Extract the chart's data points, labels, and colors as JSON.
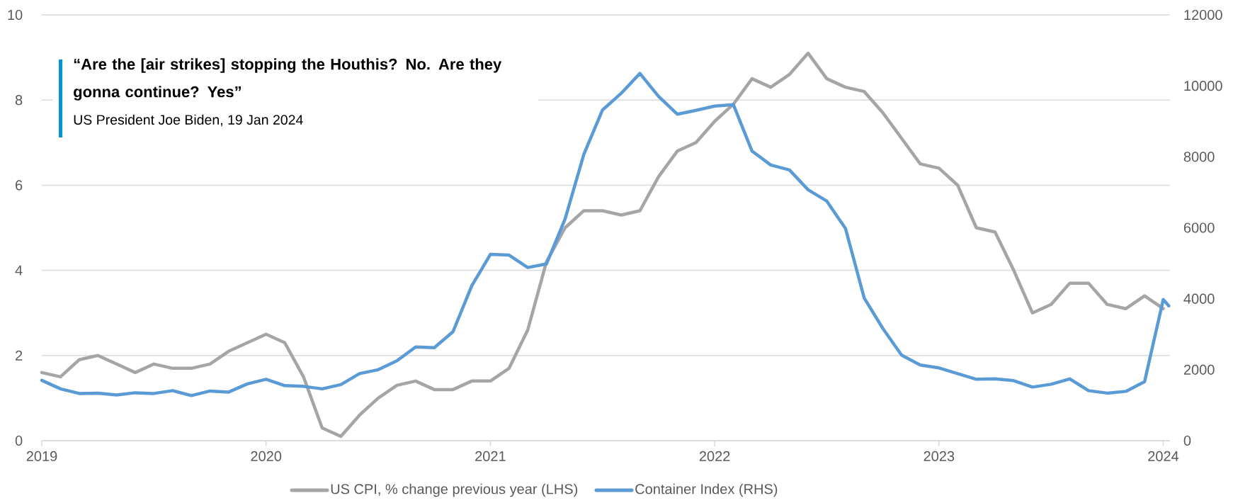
{
  "chart_data": {
    "type": "line",
    "x": [
      "2019-01",
      "2019-02",
      "2019-03",
      "2019-04",
      "2019-05",
      "2019-06",
      "2019-07",
      "2019-08",
      "2019-09",
      "2019-10",
      "2019-11",
      "2019-12",
      "2020-01",
      "2020-02",
      "2020-03",
      "2020-04",
      "2020-05",
      "2020-06",
      "2020-07",
      "2020-08",
      "2020-09",
      "2020-10",
      "2020-11",
      "2020-12",
      "2021-01",
      "2021-02",
      "2021-03",
      "2021-04",
      "2021-05",
      "2021-06",
      "2021-07",
      "2021-08",
      "2021-09",
      "2021-10",
      "2021-11",
      "2021-12",
      "2022-01",
      "2022-02",
      "2022-03",
      "2022-04",
      "2022-05",
      "2022-06",
      "2022-07",
      "2022-08",
      "2022-09",
      "2022-10",
      "2022-11",
      "2022-12",
      "2023-01",
      "2023-02",
      "2023-03",
      "2023-04",
      "2023-05",
      "2023-06",
      "2023-07",
      "2023-08",
      "2023-09",
      "2023-10",
      "2023-11",
      "2023-12",
      "2024-01"
    ],
    "series": [
      {
        "name": "US CPI, % change previous year (LHS)",
        "color": "#a5a5a5",
        "values": [
          1.6,
          1.5,
          1.9,
          2.0,
          1.8,
          1.6,
          1.8,
          1.7,
          1.7,
          1.8,
          2.1,
          2.3,
          2.5,
          2.3,
          1.5,
          0.3,
          0.1,
          0.6,
          1.0,
          1.3,
          1.4,
          1.2,
          1.2,
          1.4,
          1.4,
          1.7,
          2.6,
          4.2,
          5.0,
          5.4,
          5.4,
          5.3,
          5.4,
          6.2,
          6.8,
          7.0,
          7.5,
          7.9,
          8.5,
          8.3,
          8.6,
          9.1,
          8.5,
          8.3,
          8.2,
          7.7,
          7.1,
          6.5,
          6.4,
          6.0,
          5.0,
          4.9,
          4.0,
          3.0,
          3.2,
          3.7,
          3.7,
          3.2,
          3.1,
          3.4,
          3.1
        ]
      },
      {
        "name": "Container Index (RHS)",
        "color": "#5b9bd5",
        "axis": "y2",
        "x": [
          "2019-01",
          "2019-02",
          "2019-03",
          "2019-04",
          "2019-05",
          "2019-06",
          "2019-07",
          "2019-08",
          "2019-09",
          "2019-10",
          "2019-11",
          "2019-12",
          "2020-01",
          "2020-02",
          "2020-03",
          "2020-04",
          "2020-05",
          "2020-06",
          "2020-07",
          "2020-08",
          "2020-09",
          "2020-10",
          "2020-11",
          "2020-12",
          "2021-01",
          "2021-02",
          "2021-03",
          "2021-04",
          "2021-05",
          "2021-06",
          "2021-07",
          "2021-08",
          "2021-09",
          "2021-10",
          "2021-11",
          "2021-12",
          "2022-01",
          "2022-02",
          "2022-03",
          "2022-04",
          "2022-05",
          "2022-06",
          "2022-07",
          "2022-08",
          "2022-09",
          "2022-10",
          "2022-11",
          "2022-12",
          "2023-01",
          "2023-02",
          "2023-03",
          "2023-04",
          "2023-05",
          "2023-06",
          "2023-07",
          "2023-08",
          "2023-09",
          "2023-10",
          "2023-11",
          "2023-12",
          "2024-01",
          "2024-01-10"
        ],
        "values": [
          1700,
          1460,
          1330,
          1340,
          1290,
          1350,
          1330,
          1410,
          1270,
          1400,
          1370,
          1600,
          1730,
          1550,
          1530,
          1460,
          1580,
          1890,
          2000,
          2250,
          2640,
          2620,
          3070,
          4360,
          5250,
          5230,
          4880,
          4980,
          6250,
          8070,
          9320,
          9790,
          10350,
          9700,
          9200,
          9310,
          9430,
          9470,
          8160,
          7770,
          7630,
          7070,
          6750,
          5980,
          4020,
          3160,
          2410,
          2130,
          2050,
          1890,
          1730,
          1740,
          1690,
          1510,
          1590,
          1740,
          1410,
          1340,
          1390,
          1660,
          3980,
          3800
        ]
      }
    ],
    "xlim": [
      "2019",
      "2024-01-12"
    ],
    "xticks": [
      "2019",
      "2020",
      "2021",
      "2022",
      "2023",
      "2024"
    ],
    "ylim": [
      0,
      10
    ],
    "yticks": [
      0,
      2,
      4,
      6,
      8,
      10
    ],
    "y2lim": [
      0,
      12000
    ],
    "y2ticks": [
      0,
      2000,
      4000,
      6000,
      8000,
      10000,
      12000
    ],
    "grid": "y",
    "legend": "bottom",
    "marker": "none",
    "line_style": "solid",
    "annotations": [
      "“Are the [air strikes] stopping the Houthis? No. Are they gonna continue? Yes”",
      "US President Joe Biden, 19 Jan 2024"
    ]
  }
}
